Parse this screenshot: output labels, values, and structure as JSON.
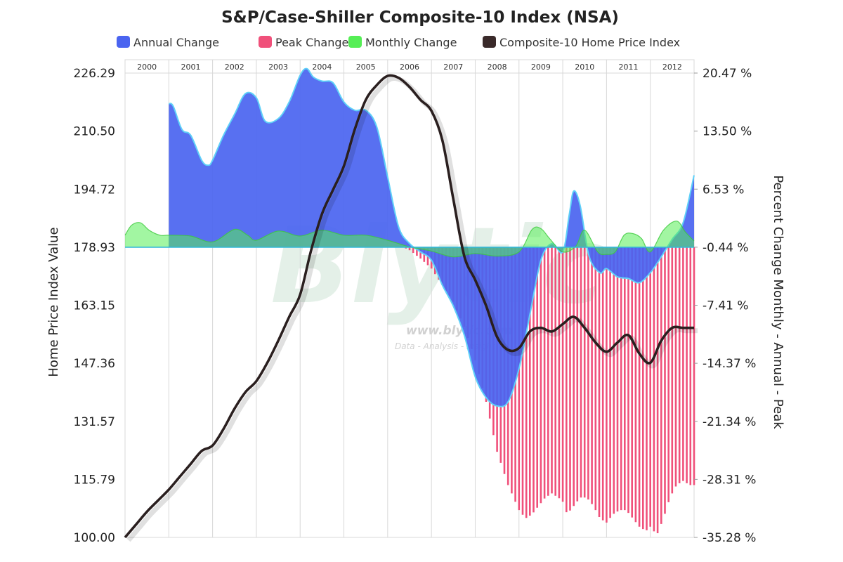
{
  "chart_data": {
    "type": "area",
    "title": "S&P/Case-Shiller Composite-10 Index (NSA)",
    "legend": {
      "placement": "top",
      "items": [
        {
          "name": "Annual Change",
          "color": "#4a64f0"
        },
        {
          "name": "Peak Change",
          "color": "#f0507a"
        },
        {
          "name": "Monthly Change",
          "color": "#55ee55"
        },
        {
          "name": "Composite-10 Home Price Index",
          "color": "#3a2a2a"
        }
      ]
    },
    "watermark": {
      "big": "Blytic",
      "url": "www.blytic.com",
      "tagline": "Data - Analysis - Insight"
    },
    "ylabel_left": "Home Price Index Value",
    "ylabel_right": "Percent Change Monthly - Annual - Peak",
    "ylim_left": [
      100.0,
      226.29
    ],
    "ylim_right": [
      -35.28,
      20.47
    ],
    "yticks_left": [
      "226.29",
      "210.50",
      "194.72",
      "178.93",
      "163.15",
      "147.36",
      "131.57",
      "115.79",
      "100.00"
    ],
    "yticks_right": [
      "20.47 %",
      "13.50 %",
      "6.53 %",
      "-0.44 %",
      "-7.41 %",
      "-14.37 %",
      "-21.34 %",
      "-28.31 %",
      "-35.28 %"
    ],
    "years": [
      "2000",
      "2001",
      "2002",
      "2003",
      "2004",
      "2005",
      "2006",
      "2007",
      "2008",
      "2009",
      "2010",
      "2011",
      "2012"
    ],
    "x_range": [
      2000.0,
      2013.0
    ],
    "grid": true,
    "series": [
      {
        "name": "Composite-10 Home Price Index",
        "axis": "left",
        "color": "#2a1f1f",
        "x": [
          2000.0,
          2000.25,
          2000.5,
          2000.75,
          2001.0,
          2001.25,
          2001.5,
          2001.75,
          2002.0,
          2002.25,
          2002.5,
          2002.75,
          2003.0,
          2003.25,
          2003.5,
          2003.75,
          2004.0,
          2004.25,
          2004.5,
          2004.75,
          2005.0,
          2005.25,
          2005.5,
          2005.75,
          2006.0,
          2006.25,
          2006.5,
          2006.75,
          2007.0,
          2007.25,
          2007.5,
          2007.75,
          2008.0,
          2008.25,
          2008.5,
          2008.75,
          2009.0,
          2009.25,
          2009.5,
          2009.75,
          2010.0,
          2010.25,
          2010.5,
          2010.75,
          2011.0,
          2011.25,
          2011.5,
          2011.75,
          2012.0,
          2012.25,
          2012.5,
          2012.75,
          2013.0
        ],
        "values": [
          100.0,
          103.5,
          107.0,
          110.0,
          113.0,
          116.5,
          120.0,
          123.5,
          125.0,
          129.5,
          135.0,
          139.5,
          142.5,
          147.5,
          153.5,
          160.0,
          166.0,
          178.0,
          188.0,
          194.5,
          201.0,
          211.0,
          219.0,
          223.0,
          225.5,
          225.0,
          222.5,
          219.0,
          216.0,
          208.0,
          192.0,
          176.5,
          170.0,
          163.0,
          154.5,
          151.0,
          151.5,
          156.0,
          157.0,
          156.0,
          158.0,
          160.0,
          157.0,
          153.0,
          150.5,
          153.0,
          155.0,
          150.0,
          147.5,
          153.5,
          157.0,
          157.0,
          157.0
        ]
      },
      {
        "name": "Annual Change",
        "axis": "right",
        "color": "#4a64f0",
        "x": [
          2001.0,
          2001.1,
          2001.3,
          2001.5,
          2001.75,
          2001.9,
          2002.0,
          2002.25,
          2002.5,
          2002.75,
          2003.0,
          2003.2,
          2003.5,
          2003.75,
          2004.0,
          2004.15,
          2004.3,
          2004.5,
          2004.75,
          2005.0,
          2005.25,
          2005.5,
          2005.75,
          2006.0,
          2006.25,
          2006.5,
          2006.75,
          2007.0,
          2007.25,
          2007.5,
          2007.75,
          2008.0,
          2008.25,
          2008.5,
          2008.75,
          2009.0,
          2009.25,
          2009.5,
          2009.75,
          2010.0,
          2010.15,
          2010.25,
          2010.4,
          2010.6,
          2010.85,
          2011.0,
          2011.25,
          2011.5,
          2011.75,
          2012.0,
          2012.2,
          2012.5,
          2012.75,
          2013.0
        ],
        "values": [
          16.8,
          16.5,
          13.7,
          13.0,
          10.0,
          9.4,
          10.0,
          13.0,
          15.5,
          18.0,
          17.5,
          14.7,
          15.0,
          17.0,
          20.2,
          21.0,
          20.0,
          19.5,
          19.3,
          17.0,
          16.0,
          16.0,
          14.0,
          8.0,
          2.0,
          0.0,
          -1.0,
          -2.0,
          -5.0,
          -7.5,
          -11.0,
          -16.0,
          -18.5,
          -19.5,
          -19.0,
          -15.0,
          -8.5,
          -2.0,
          0.0,
          -1.0,
          3.5,
          6.3,
          4.5,
          -1.5,
          -3.5,
          -3.0,
          -4.0,
          -4.2,
          -4.7,
          -3.5,
          -2.0,
          0.5,
          2.5,
          8.2
        ]
      },
      {
        "name": "Monthly Change",
        "axis": "right",
        "color": "#55ee55",
        "x": [
          2000.0,
          2000.15,
          2000.35,
          2000.55,
          2000.8,
          2001.0,
          2001.5,
          2002.0,
          2002.5,
          2002.8,
          2003.0,
          2003.5,
          2004.0,
          2004.5,
          2005.0,
          2005.5,
          2006.0,
          2006.5,
          2007.0,
          2007.5,
          2008.0,
          2008.5,
          2009.0,
          2009.3,
          2009.5,
          2009.7,
          2010.0,
          2010.3,
          2010.5,
          2010.8,
          2011.0,
          2011.2,
          2011.4,
          2011.6,
          2011.8,
          2012.0,
          2012.3,
          2012.6,
          2012.8,
          2013.0
        ],
        "values": [
          1.0,
          2.2,
          2.5,
          1.6,
          1.0,
          1.0,
          0.9,
          0.2,
          1.7,
          1.0,
          0.4,
          1.5,
          0.9,
          1.6,
          1.0,
          1.0,
          0.4,
          -0.4,
          -0.9,
          -1.6,
          -1.2,
          -1.5,
          -1.0,
          1.7,
          1.8,
          0.6,
          -1.0,
          -0.3,
          1.6,
          -1.0,
          -1.3,
          -1.0,
          1.0,
          1.2,
          0.6,
          -1.0,
          1.6,
          2.7,
          1.4,
          0.3
        ]
      },
      {
        "name": "Peak Change",
        "axis": "right",
        "color": "#f0507a",
        "x": [
          2006.0,
          2006.3,
          2006.5,
          2006.75,
          2007.0,
          2007.25,
          2007.5,
          2007.75,
          2008.0,
          2008.25,
          2008.5,
          2008.75,
          2009.0,
          2009.15,
          2009.3,
          2009.45,
          2009.6,
          2009.75,
          2009.9,
          2010.0,
          2010.1,
          2010.25,
          2010.4,
          2010.55,
          2010.7,
          2010.85,
          2011.0,
          2011.15,
          2011.3,
          2011.45,
          2011.6,
          2011.75,
          2011.9,
          2012.0,
          2012.15,
          2012.3,
          2012.45,
          2012.6,
          2012.75,
          2012.9,
          2013.0
        ],
        "values": [
          0.0,
          -0.3,
          -0.8,
          -1.8,
          -3.0,
          -5.0,
          -7.0,
          -10.0,
          -14.0,
          -19.0,
          -25.0,
          -29.0,
          -32.0,
          -33.0,
          -32.5,
          -31.5,
          -30.5,
          -30.0,
          -30.5,
          -31.0,
          -32.5,
          -31.5,
          -30.5,
          -30.5,
          -31.5,
          -33.0,
          -33.5,
          -32.5,
          -32.0,
          -32.0,
          -33.0,
          -34.0,
          -34.5,
          -34.0,
          -35.0,
          -33.0,
          -30.5,
          -29.0,
          -28.5,
          -29.0,
          -29.0
        ]
      }
    ]
  }
}
